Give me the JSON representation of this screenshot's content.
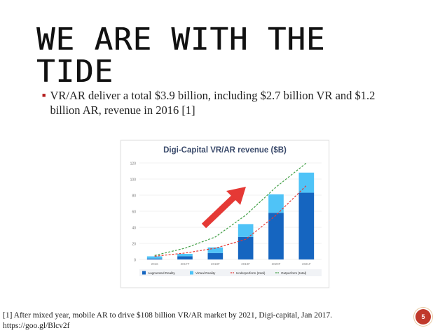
{
  "slide": {
    "title_line1": "WE ARE WITH THE",
    "title_line2": "TIDE",
    "bullet": "VR/AR deliver a total $3.9 billion, including $2.7 billion VR and $1.2 billion AR, revenue in 2016 [1]",
    "footnote_line1": "[1] After mixed year, mobile AR to drive $108 billion VR/AR market by 2021, Digi-capital, Jan 2017.",
    "footnote_line2": "https://goo.gl/Blcv2f",
    "page_number": "5",
    "accent_color": "#c0392b"
  },
  "chart_data": {
    "type": "bar",
    "title": "Digi-Capital VR/AR revenue ($B)",
    "categories": [
      "2016",
      "2017F",
      "2018F",
      "2019F",
      "2020F",
      "2021F"
    ],
    "ylim": [
      0,
      120
    ],
    "yticks": [
      0,
      20,
      40,
      60,
      80,
      100,
      120
    ],
    "series": [
      {
        "name": "Augmented Reality",
        "color": "#1565c0",
        "values": [
          1.2,
          4,
          8,
          28,
          58,
          83
        ]
      },
      {
        "name": "Virtual Reality",
        "color": "#4fc3f7",
        "values": [
          2.7,
          3,
          7,
          16,
          23,
          25
        ]
      }
    ],
    "lines": [
      {
        "name": "Underperform (total)",
        "color": "#e53935",
        "style": "dashed",
        "values": [
          4,
          8,
          14,
          25,
          55,
          92
        ]
      },
      {
        "name": "Outperform (total)",
        "color": "#43a047",
        "style": "dashed",
        "values": [
          5,
          14,
          28,
          55,
          90,
          120
        ]
      }
    ],
    "legend_position": "bottom",
    "legend_labels": [
      "Augmented Reality",
      "Virtual Reality",
      "Underperform (total)",
      "Outperform (total)"
    ],
    "arrow_color": "#e53935",
    "grid": true
  }
}
